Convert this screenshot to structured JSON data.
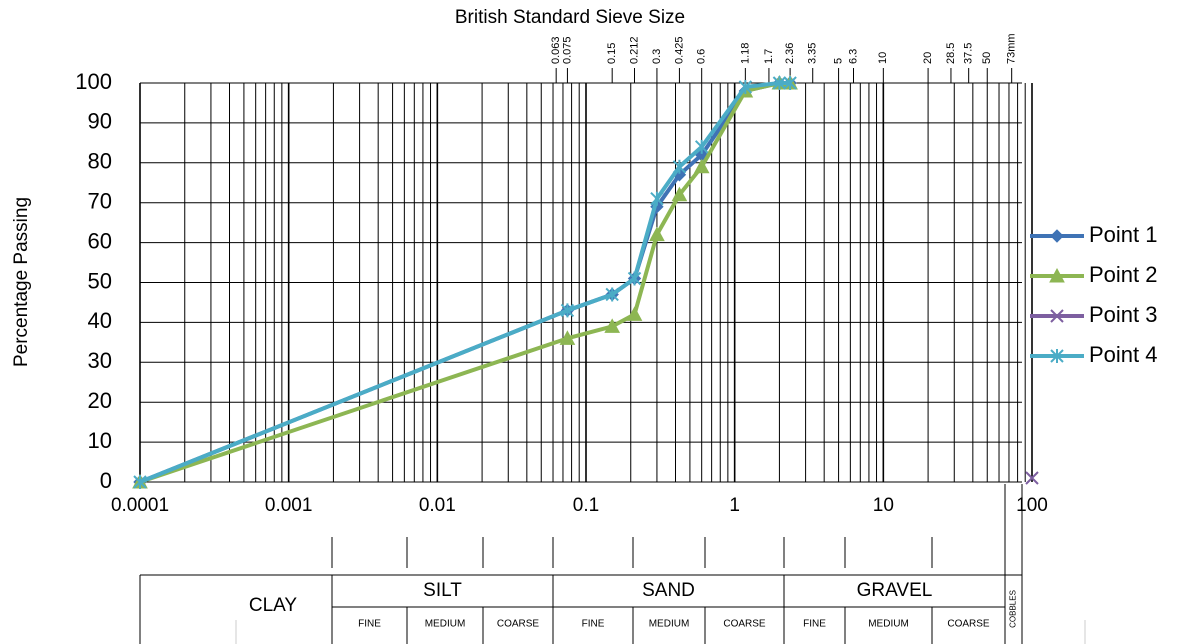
{
  "chart_data": {
    "type": "line",
    "title": "British Standard Sieve Size",
    "y_label": "Percentage Passing",
    "x_scale": "log",
    "xlim": [
      0.0001,
      100
    ],
    "xticks": [
      0.0001,
      0.001,
      0.01,
      0.1,
      1,
      10,
      100
    ],
    "ylim": [
      0,
      100
    ],
    "yticks": [
      0,
      10,
      20,
      30,
      40,
      50,
      60,
      70,
      80,
      90,
      100
    ],
    "grid": true,
    "minor_grid": true,
    "legend": "right",
    "sieve_ticks": [
      0.063,
      0.075,
      0.15,
      0.212,
      0.3,
      0.425,
      0.6,
      1.18,
      1.7,
      2.36,
      3.35,
      5,
      6.3,
      10,
      20,
      28.5,
      37.5,
      50,
      {
        "value": 73,
        "label": "73mm"
      }
    ],
    "series": [
      {
        "name": "Point 1",
        "color": "#3f73b5",
        "marker": "diamond",
        "x": [
          0.0001,
          0.075,
          0.15,
          0.212,
          0.3,
          0.425,
          0.6,
          1.18,
          2,
          2.36
        ],
        "values": [
          0,
          43,
          47,
          51,
          69,
          77,
          82,
          98,
          100,
          100
        ]
      },
      {
        "name": "Point 2",
        "color": "#8db653",
        "marker": "triangle",
        "x": [
          0.0001,
          0.075,
          0.15,
          0.212,
          0.3,
          0.425,
          0.6,
          1.18,
          2,
          2.36
        ],
        "values": [
          0,
          36,
          39,
          42,
          62,
          72,
          79,
          98,
          100,
          100
        ]
      },
      {
        "name": "Point 3",
        "color": "#7d5fa0",
        "marker": "x",
        "x": [
          100
        ],
        "values": [
          1
        ]
      },
      {
        "name": "Point 4",
        "color": "#4bacc6",
        "marker": "star",
        "x": [
          0.0001,
          0.075,
          0.15,
          0.212,
          0.3,
          0.425,
          0.6,
          1.18,
          2,
          2.36
        ],
        "values": [
          0,
          43,
          47,
          51,
          71,
          79,
          84,
          99,
          100,
          100
        ]
      }
    ]
  },
  "classification": {
    "classes": [
      {
        "name": "CLAY"
      },
      {
        "name": "SILT",
        "parts": [
          "FINE",
          "MEDIUM",
          "COARSE"
        ]
      },
      {
        "name": "SAND",
        "parts": [
          "FINE",
          "MEDIUM",
          "COARSE"
        ]
      },
      {
        "name": "GRAVEL",
        "parts": [
          "FINE",
          "MEDIUM",
          "COARSE"
        ]
      },
      {
        "name": "COBBLES"
      }
    ]
  }
}
